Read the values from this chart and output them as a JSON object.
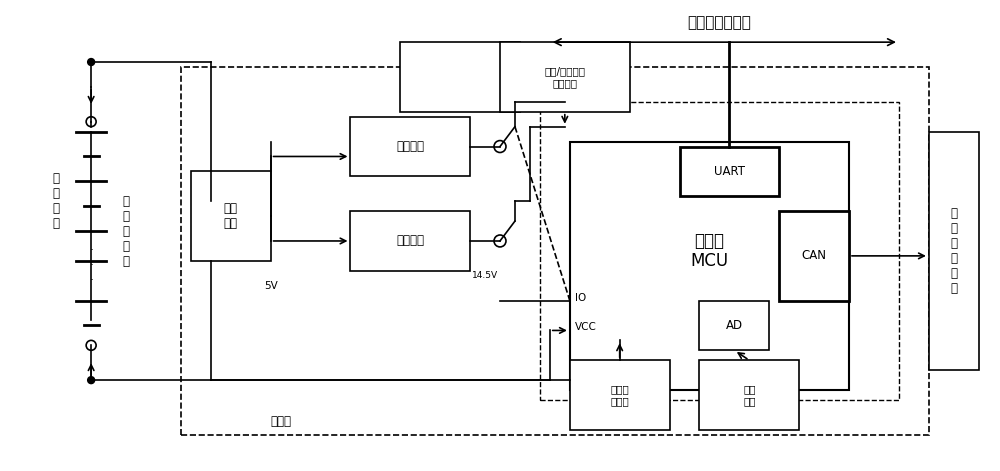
{
  "title": "",
  "bg_color": "#ffffff",
  "fig_width": 10.0,
  "fig_height": 4.71,
  "text_color": "#000000",
  "labels": {
    "main_bus": "主从机数据总线",
    "main_controller": "主控机",
    "battery_pack": "铅\n酸\n电\n池\n组",
    "user_load": "用\n电\n部\n分",
    "voltage_conv": "电压\n转换",
    "const_current": "恒流电源",
    "const_voltage": "恒压电源",
    "balance_socket": "恒流/恒压均衡\n线束插座",
    "mcu": "单片机\nMCU",
    "uart": "UART",
    "can": "CAN",
    "ad": "AD",
    "prog_port": "程序烧\n写接口",
    "thermal": "热敏\n检测",
    "io_label": "IO",
    "vcc_label": "VCC",
    "5v_label": "5V",
    "14v5_label": "14.5V",
    "slave_controller": "从\n控\n制\n器\n总\n线"
  }
}
